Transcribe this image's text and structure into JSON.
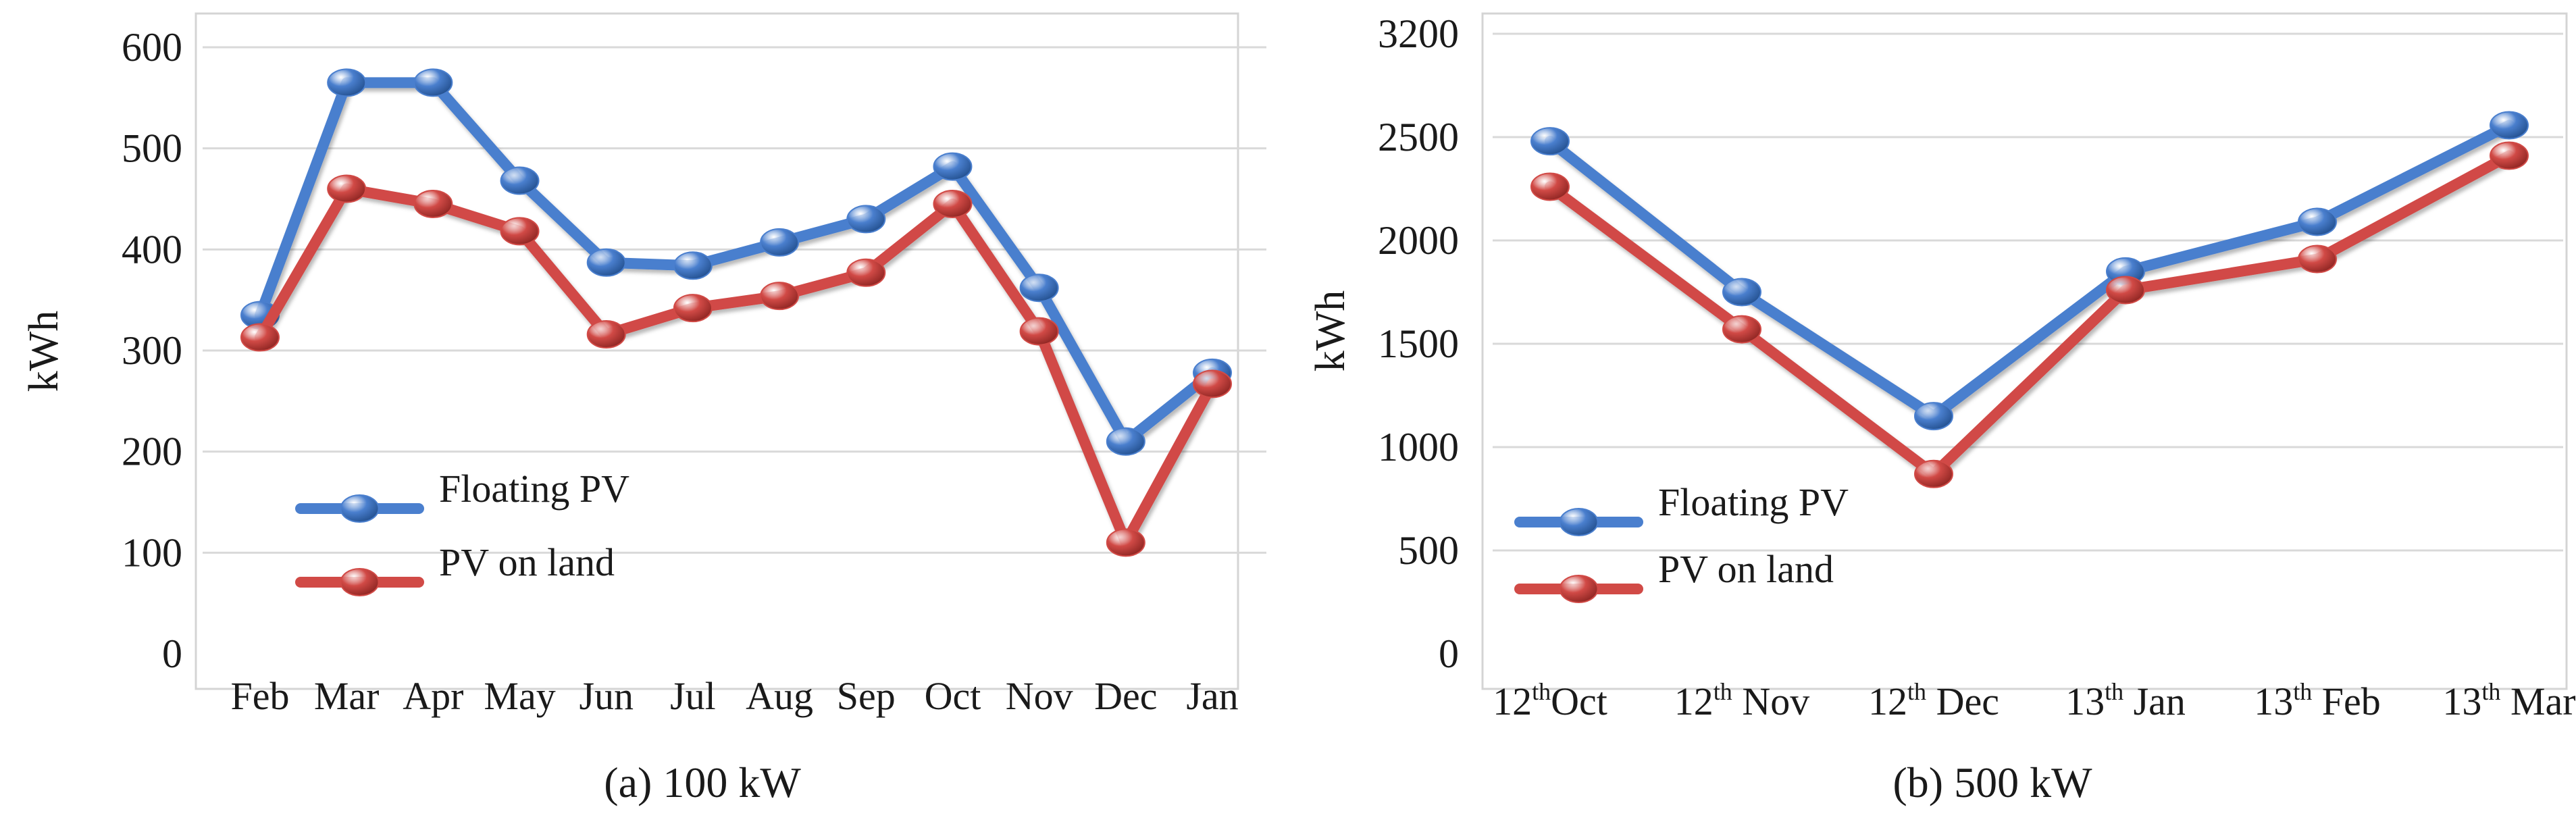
{
  "colors": {
    "floating": "#4a7fce",
    "land": "#d14a46",
    "grid": "#d9d9d9",
    "frame": "#d4d4d4"
  },
  "chart_data": [
    {
      "type": "line",
      "caption": "(a) 100 kW",
      "ylabel": "kWh",
      "xlabel": "",
      "ylim": [
        0,
        600
      ],
      "yticks": [
        "0",
        "100",
        "200",
        "300",
        "400",
        "500",
        "600"
      ],
      "categories": [
        {
          "text": "Feb"
        },
        {
          "text": "Mar"
        },
        {
          "text": "Apr"
        },
        {
          "text": "May"
        },
        {
          "text": "Jun"
        },
        {
          "text": "Jul"
        },
        {
          "text": "Aug"
        },
        {
          "text": "Sep"
        },
        {
          "text": "Oct"
        },
        {
          "text": "Nov"
        },
        {
          "text": "Dec"
        },
        {
          "text": "Jan"
        }
      ],
      "legend": {
        "placement": "bottom-left"
      },
      "series": [
        {
          "name": "Floating PV",
          "color_key": "floating",
          "values": [
            335,
            565,
            565,
            468,
            387,
            384,
            407,
            430,
            482,
            362,
            210,
            278
          ]
        },
        {
          "name": "PV on land",
          "color_key": "land",
          "values": [
            313,
            460,
            445,
            418,
            316,
            342,
            354,
            377,
            445,
            319,
            110,
            267
          ]
        }
      ]
    },
    {
      "type": "line",
      "caption": "(b) 500 kW",
      "ylabel": "kWh",
      "xlabel": "",
      "ylim": [
        0,
        3200
      ],
      "yticks": [
        "0",
        "500",
        "1000",
        "1500",
        "2000",
        "2500",
        "3200"
      ],
      "categories": [
        {
          "pre": "12",
          "sup": "th",
          "post": "Oct"
        },
        {
          "pre": "12",
          "sup": "th",
          "post": " Nov"
        },
        {
          "pre": "12",
          "sup": "th",
          "post": " Dec"
        },
        {
          "pre": "13",
          "sup": "th",
          "post": " Jan"
        },
        {
          "pre": "13",
          "sup": "th",
          "post": " Feb"
        },
        {
          "pre": "13",
          "sup": "th",
          "post": " Mar"
        }
      ],
      "legend": {
        "placement": "bottom-left"
      },
      "series": [
        {
          "name": "Floating PV",
          "color_key": "floating",
          "values": [
            2480,
            1750,
            1150,
            1850,
            2090,
            2580
          ]
        },
        {
          "name": "PV on land",
          "color_key": "land",
          "values": [
            2260,
            1570,
            870,
            1760,
            1910,
            2410
          ]
        }
      ]
    }
  ]
}
